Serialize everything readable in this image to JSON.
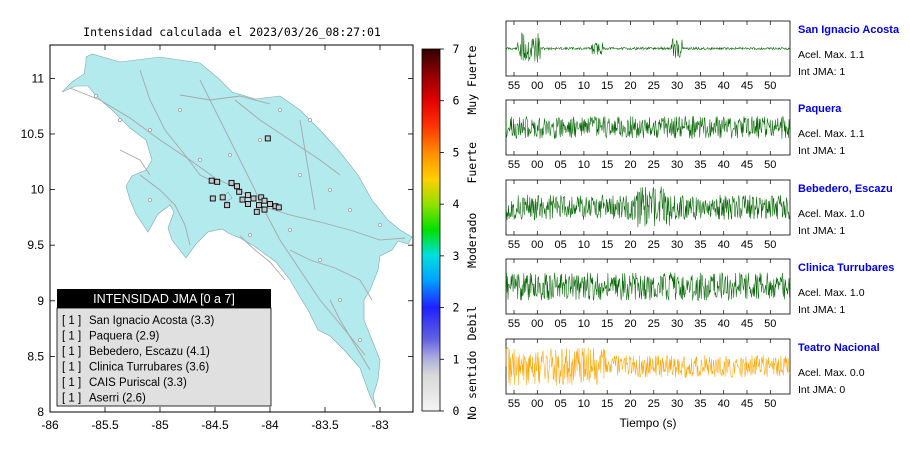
{
  "map": {
    "title": "Intensidad calculada el 2023/03/26_08:27:01",
    "x_ticks": [
      "-86",
      "-85.5",
      "-85",
      "-84.5",
      "-84",
      "-83.5",
      "-83"
    ],
    "y_ticks": [
      "11",
      "10.5",
      "10",
      "9.5",
      "9",
      "8.5",
      "8"
    ],
    "stations": [
      {
        "lon": -84.02,
        "lat": 10.46
      },
      {
        "lon": -84.53,
        "lat": 10.08
      },
      {
        "lon": -84.48,
        "lat": 10.07
      },
      {
        "lon": -84.35,
        "lat": 10.06
      },
      {
        "lon": -84.3,
        "lat": 10.03
      },
      {
        "lon": -84.28,
        "lat": 9.98
      },
      {
        "lon": -84.2,
        "lat": 9.95
      },
      {
        "lon": -84.15,
        "lat": 9.92
      },
      {
        "lon": -84.08,
        "lat": 9.93
      },
      {
        "lon": -84.05,
        "lat": 9.9
      },
      {
        "lon": -84.0,
        "lat": 9.87
      },
      {
        "lon": -83.95,
        "lat": 9.85
      },
      {
        "lon": -84.1,
        "lat": 9.86
      },
      {
        "lon": -84.2,
        "lat": 9.87
      },
      {
        "lon": -84.12,
        "lat": 9.8
      },
      {
        "lon": -84.43,
        "lat": 9.93
      },
      {
        "lon": -84.52,
        "lat": 9.92
      },
      {
        "lon": -84.39,
        "lat": 9.86
      },
      {
        "lon": -83.92,
        "lat": 9.84
      },
      {
        "lon": -84.05,
        "lat": 9.82
      },
      {
        "lon": -84.25,
        "lat": 9.91
      }
    ]
  },
  "legend": {
    "title": "INTENSIDAD JMA [0 a 7]",
    "items": [
      {
        "level": "[ 1 ]",
        "name": "San Ignacio Acosta (3.3)"
      },
      {
        "level": "[ 1 ]",
        "name": "Paquera (2.9)"
      },
      {
        "level": "[ 1 ]",
        "name": "Bebedero, Escazu (4.1)"
      },
      {
        "level": "[ 1 ]",
        "name": "Clinica Turrubares (3.6)"
      },
      {
        "level": "[ 1 ]",
        "name": "CAIS Puriscal (3.3)"
      },
      {
        "level": "[ 1 ]",
        "name": "Aserri (2.6)"
      }
    ]
  },
  "colorbar": {
    "ticks": [
      "0",
      "1",
      "2",
      "3",
      "4",
      "5",
      "6",
      "7"
    ],
    "labels": [
      "No sentido",
      "Debil",
      "Moderado",
      "Fuerte",
      "Muy Fuerte"
    ]
  },
  "traces": [
    {
      "station": "San Ignacio Acosta",
      "accel": "Acel. Max. 1.1",
      "jma": "Int JMA: 1",
      "color": "#006400",
      "ticks": [
        "55",
        "00",
        "05",
        "10",
        "15",
        "20",
        "25",
        "30",
        "35",
        "40",
        "45",
        "50"
      ],
      "seed": 11,
      "amp": 0.08
    },
    {
      "station": "Paquera",
      "accel": "Acel. Max. 1.1",
      "jma": "Int JMA: 1",
      "color": "#006400",
      "ticks": [
        "55",
        "00",
        "05",
        "10",
        "15",
        "20",
        "25",
        "30",
        "35",
        "40",
        "45",
        "50"
      ],
      "seed": 23,
      "amp": 0.45
    },
    {
      "station": "Bebedero, Escazu",
      "accel": "Acel. Max. 1.0",
      "jma": "Int JMA: 1",
      "color": "#006400",
      "ticks": [
        "55",
        "00",
        "05",
        "10",
        "15",
        "20",
        "25",
        "30",
        "35",
        "40",
        "45",
        "50"
      ],
      "seed": 37,
      "amp": 0.5
    },
    {
      "station": "Clinica Turrubares",
      "accel": "Acel. Max. 1.0",
      "jma": "Int JMA: 1",
      "color": "#006400",
      "ticks": [
        "55",
        "00",
        "05",
        "10",
        "15",
        "20",
        "25",
        "30",
        "35",
        "40",
        "45",
        "50"
      ],
      "seed": 53,
      "amp": 0.55
    },
    {
      "station": "Teatro Nacional",
      "accel": "Acel. Max. 0.0",
      "jma": "Int JMA: 0",
      "color": "#ffa500",
      "ticks": [
        "55",
        "00",
        "05",
        "10",
        "15",
        "20",
        "25",
        "30",
        "35",
        "40",
        "45",
        "50"
      ],
      "seed": 71,
      "amp": 0.45
    }
  ],
  "xaxis_label": "Tiempo (s)",
  "colors": {
    "land": "#b3eaee",
    "frame": "#000000",
    "station_title": "#0000ee"
  }
}
